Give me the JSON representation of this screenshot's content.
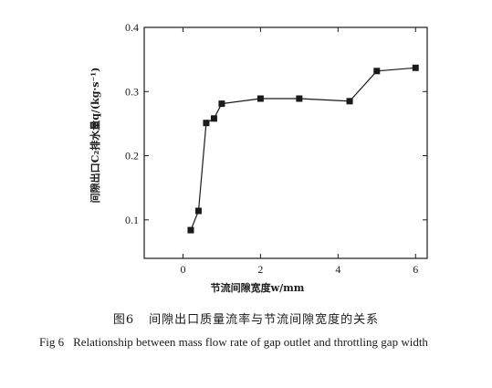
{
  "chart_data": {
    "type": "line",
    "xlabel": "节流间隙宽度w/mm",
    "ylabel": "间隙出口C₂排水量q/(kg·s⁻¹)",
    "xlim": [
      -1,
      6.3
    ],
    "ylim": [
      0.04,
      0.4
    ],
    "xticks": [
      0,
      2,
      4,
      6
    ],
    "yticks": [
      0.1,
      0.2,
      0.3,
      0.4
    ],
    "x": [
      0.2,
      0.4,
      0.6,
      0.8,
      1.0,
      2.0,
      3.0,
      4.3,
      5.0,
      6.0
    ],
    "y": [
      0.084,
      0.114,
      0.251,
      0.258,
      0.281,
      0.289,
      0.289,
      0.285,
      0.332,
      0.337
    ],
    "marker": "square",
    "grid": false
  },
  "caption": {
    "cn_label": "图6",
    "cn_text": "间隙出口质量流率与节流间隙宽度的关系",
    "en_label": "Fig 6",
    "en_text": "Relationship between mass flow rate of gap outlet and throttling gap width"
  }
}
